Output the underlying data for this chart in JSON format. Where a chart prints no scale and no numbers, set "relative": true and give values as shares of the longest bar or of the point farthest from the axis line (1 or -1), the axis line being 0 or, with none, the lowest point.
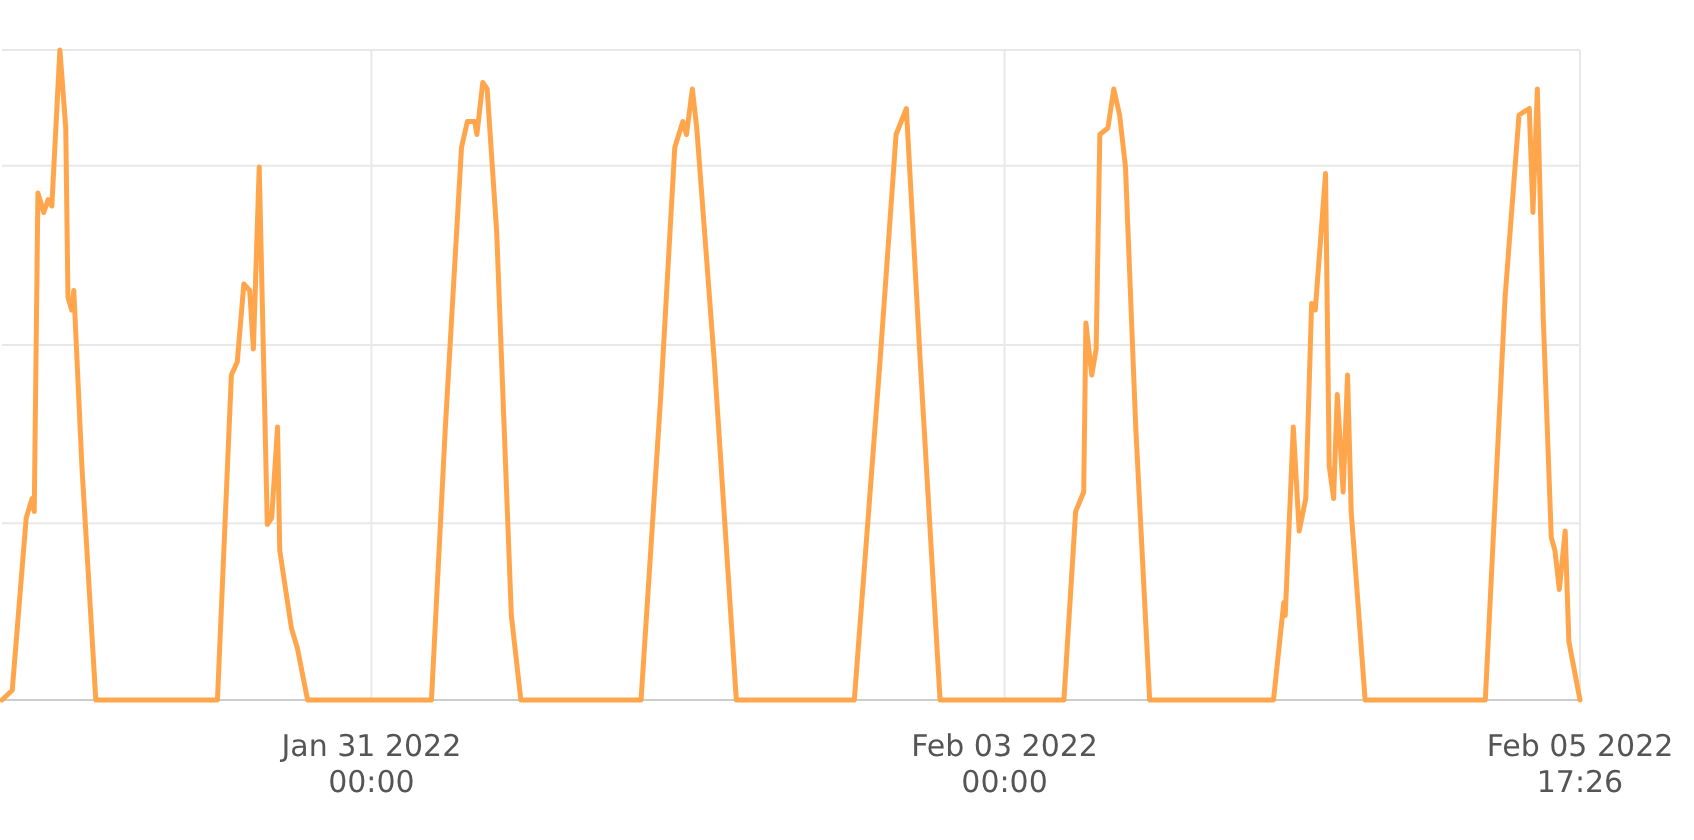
{
  "chart_data": {
    "type": "line",
    "relative": true,
    "grid": true,
    "color": "#ffa64d",
    "xlim": [
      "2022-01-29T06:00",
      "2022-02-05T17:26"
    ],
    "xticks": [
      {
        "value": "2022-01-31T00:00",
        "label": "Jan 31 2022\n00:00"
      },
      {
        "value": "2022-02-03T00:00",
        "label": "Feb 03 2022\n00:00"
      },
      {
        "value": "2022-02-05T17:26",
        "label": "Feb 05 2022\n17:26"
      }
    ],
    "x": [
      "2022-01-29T06:00",
      "2022-01-29T07:10",
      "2022-01-29T08:45",
      "2022-01-29T09:25",
      "2022-01-29T09:40",
      "2022-01-29T10:05",
      "2022-01-29T10:45",
      "2022-01-29T11:15",
      "2022-01-29T11:40",
      "2022-01-29T12:35",
      "2022-01-29T13:15",
      "2022-01-29T13:30",
      "2022-01-29T13:55",
      "2022-01-29T14:10",
      "2022-01-29T15:05",
      "2022-01-29T16:40",
      "2022-01-30T06:30",
      "2022-01-30T08:05",
      "2022-01-30T08:45",
      "2022-01-30T09:30",
      "2022-01-30T10:10",
      "2022-01-30T10:35",
      "2022-01-30T11:15",
      "2022-01-30T12:10",
      "2022-01-30T12:40",
      "2022-01-30T13:20",
      "2022-01-30T13:35",
      "2022-01-30T14:55",
      "2022-01-30T15:35",
      "2022-01-30T16:45",
      "2022-01-31T06:50",
      "2022-01-31T08:25",
      "2022-01-31T10:15",
      "2022-01-31T10:55",
      "2022-01-31T11:45",
      "2022-01-31T12:00",
      "2022-01-31T12:40",
      "2022-01-31T13:10",
      "2022-01-31T14:15",
      "2022-01-31T15:55",
      "2022-01-31T17:00",
      "2022-02-01T06:40",
      "2022-02-01T08:55",
      "2022-02-01T10:30",
      "2022-02-01T11:25",
      "2022-02-01T11:50",
      "2022-02-01T12:30",
      "2022-02-01T13:00",
      "2022-02-01T15:00",
      "2022-02-01T17:30",
      "2022-02-02T06:55",
      "2022-02-02T09:50",
      "2022-02-02T11:40",
      "2022-02-02T12:50",
      "2022-02-02T14:25",
      "2022-02-02T16:40",
      "2022-02-03T06:45",
      "2022-02-03T08:05",
      "2022-02-03T09:00",
      "2022-02-03T09:15",
      "2022-02-03T09:55",
      "2022-02-03T10:25",
      "2022-02-03T10:50",
      "2022-02-03T11:45",
      "2022-02-03T12:25",
      "2022-02-03T13:05",
      "2022-02-03T13:45",
      "2022-02-03T14:55",
      "2022-02-03T16:30",
      "2022-02-04T06:35",
      "2022-02-04T07:45",
      "2022-02-04T07:55",
      "2022-02-04T08:50",
      "2022-02-04T09:30",
      "2022-02-04T10:15",
      "2022-02-04T10:55",
      "2022-02-04T11:20",
      "2022-02-04T12:30",
      "2022-02-04T12:55",
      "2022-02-04T13:25",
      "2022-02-04T13:50",
      "2022-02-04T14:30",
      "2022-02-04T15:00",
      "2022-02-04T15:25",
      "2022-02-04T17:00",
      "2022-02-05T06:40",
      "2022-02-05T08:55",
      "2022-02-05T10:30",
      "2022-02-05T11:40",
      "2022-02-05T12:05",
      "2022-02-05T12:35",
      "2022-02-05T13:15",
      "2022-02-05T14:10",
      "2022-02-05T14:35",
      "2022-02-05T15:05",
      "2022-02-05T15:45",
      "2022-02-05T16:10",
      "2022-02-05T17:26"
    ],
    "values": [
      0,
      0.015,
      0.28,
      0.31,
      0.29,
      0.78,
      0.75,
      0.77,
      0.76,
      1,
      0.88,
      0.62,
      0.6,
      0.63,
      0.36,
      0,
      0,
      0.5,
      0.52,
      0.64,
      0.63,
      0.54,
      0.82,
      0.27,
      0.28,
      0.42,
      0.23,
      0.11,
      0.08,
      0,
      0,
      0.42,
      0.85,
      0.89,
      0.89,
      0.87,
      0.95,
      0.94,
      0.72,
      0.13,
      0,
      0,
      0.47,
      0.85,
      0.89,
      0.87,
      0.94,
      0.88,
      0.52,
      0,
      0,
      0.52,
      0.87,
      0.91,
      0.52,
      0,
      0,
      0.29,
      0.32,
      0.58,
      0.5,
      0.54,
      0.87,
      0.88,
      0.94,
      0.9,
      0.82,
      0.42,
      0,
      0,
      0.15,
      0.13,
      0.42,
      0.26,
      0.31,
      0.61,
      0.6,
      0.81,
      0.36,
      0.31,
      0.47,
      0.32,
      0.5,
      0.29,
      0,
      0,
      0.62,
      0.9,
      0.91,
      0.75,
      0.94,
      0.59,
      0.25,
      0.23,
      0.17,
      0.26,
      0.09,
      0
    ]
  }
}
